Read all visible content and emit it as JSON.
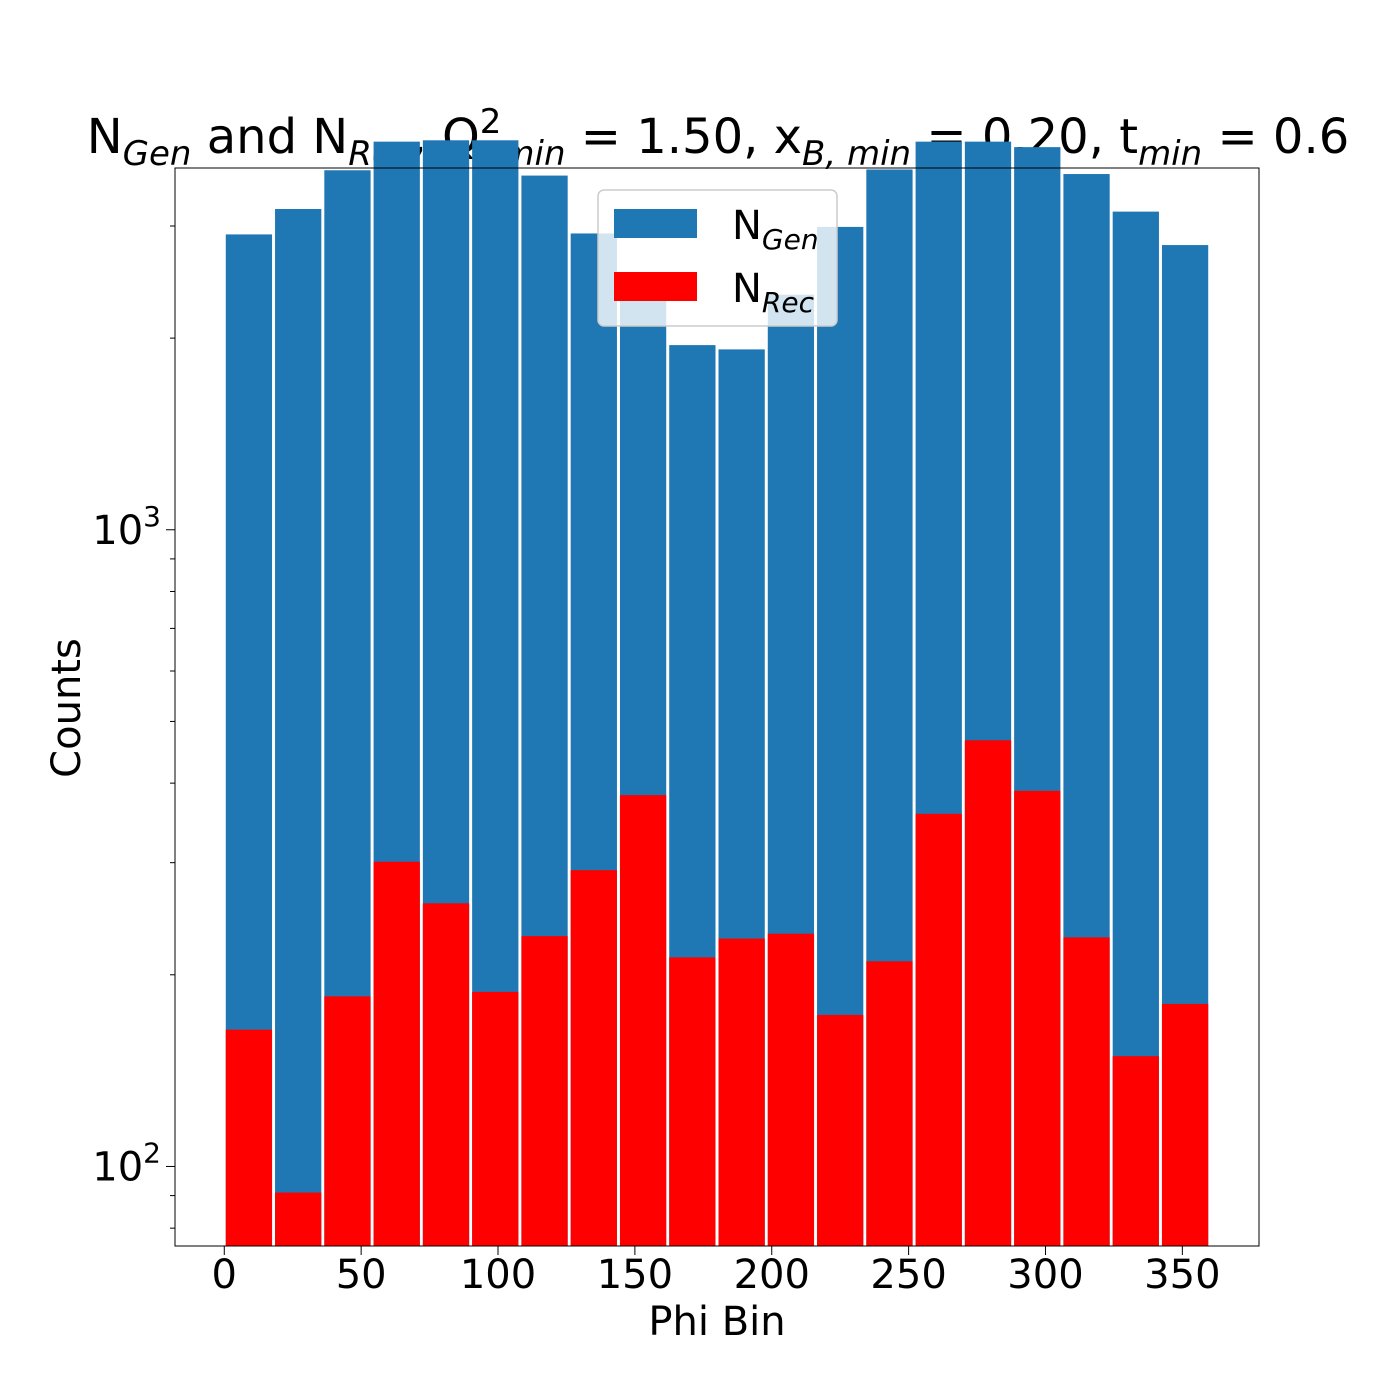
{
  "chart_data": {
    "type": "bar",
    "title": {
      "parts": [
        {
          "t": "N"
        },
        {
          "t": "Gen",
          "sub": true
        },
        {
          "t": " and N"
        },
        {
          "t": "Rec",
          "sub": true
        },
        {
          "t": ", Q"
        },
        {
          "t": "2",
          "sup": true
        },
        {
          "t": "min",
          "sub": true
        },
        {
          "t": " = 1.50, x"
        },
        {
          "t": "B, min",
          "sub": true
        },
        {
          "t": " = 0.20, t"
        },
        {
          "t": "min",
          "sub": true
        },
        {
          "t": " = 0.6"
        }
      ]
    },
    "xlabel": "Phi Bin",
    "ylabel": "Counts",
    "yscale": "log",
    "xlim": [
      -18,
      378
    ],
    "ylim": [
      75,
      3700
    ],
    "xticks": [
      0,
      50,
      100,
      150,
      200,
      250,
      300,
      350
    ],
    "yticks": [
      {
        "value": 100,
        "base": "10",
        "exp": "2"
      },
      {
        "value": 1000,
        "base": "10",
        "exp": "3"
      }
    ],
    "bin_width": 18,
    "bin_starts": [
      0,
      18,
      36,
      54,
      72,
      90,
      108,
      126,
      144,
      162,
      180,
      198,
      216,
      234,
      252,
      270,
      288,
      306,
      324,
      342
    ],
    "series": [
      {
        "name": "N",
        "name_sub": "Gen",
        "color": "#1f77b4",
        "values": [
          2910,
          3190,
          3670,
          4070,
          4090,
          4090,
          3600,
          2920,
          2380,
          1950,
          1920,
          2340,
          2990,
          3680,
          4070,
          4070,
          3990,
          3620,
          3160,
          2800
        ]
      },
      {
        "name": "N",
        "name_sub": "Rec",
        "color": "#ff0000",
        "values": [
          164,
          91,
          185,
          301,
          259,
          188,
          230,
          292,
          383,
          213,
          228,
          232,
          173,
          210,
          358,
          467,
          389,
          229,
          149,
          180
        ]
      }
    ],
    "legend_position": "top-center",
    "grid": false
  }
}
